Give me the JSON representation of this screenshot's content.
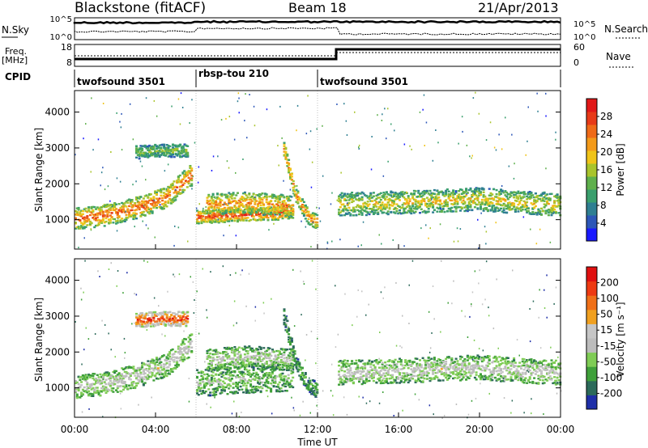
{
  "header": {
    "station": "Blackstone (fitACF)",
    "beam": "Beam 18",
    "date": "21/Apr/2013"
  },
  "left_labels": {
    "nsky": "N.Sky",
    "freq1": "Freq.",
    "freq2": "[MHz]",
    "cpid": "CPID"
  },
  "right_labels": {
    "nsearch": "N.Search",
    "nave": "Nave"
  },
  "noise_axis": {
    "left_ticks": [
      "10^5",
      "10^0"
    ],
    "right_ticks": [
      "10^5",
      "10^0"
    ]
  },
  "freq_axis": {
    "left_ticks": [
      "18",
      "8"
    ],
    "right_ticks": [
      "60",
      "0"
    ]
  },
  "cpid_segments": [
    {
      "label": "twofsound 3501",
      "start": 0,
      "end": 6
    },
    {
      "label": "rbsp-tou 210",
      "start": 6,
      "end": 12
    },
    {
      "label": "twofsound 3501",
      "start": 12,
      "end": 24
    }
  ],
  "chart_data": [
    {
      "type": "heatmap",
      "name": "power",
      "xlabel": "Time UT",
      "ylabel": "Slant Range [km]",
      "xlim": [
        0,
        24
      ],
      "ylim": [
        180,
        4600
      ],
      "yticks": [
        "1000",
        "2000",
        "3000",
        "4000"
      ],
      "colorbar": {
        "label": "Power [dB]",
        "ticks": [
          "28",
          "24",
          "20",
          "16",
          "12",
          "8",
          "4"
        ],
        "colors": [
          "#1a1aff",
          "#2d57b8",
          "#2f7f92",
          "#3a9f6d",
          "#5fb04c",
          "#a9c42c",
          "#f0c419",
          "#f39a1a",
          "#ef6a18",
          "#e73a18",
          "#e11818"
        ]
      },
      "bands": [
        {
          "t": [
            0,
            1.5,
            3,
            4.5,
            5.8
          ],
          "center": [
            1050,
            1150,
            1350,
            1650,
            2300
          ],
          "width": 300,
          "level": 0.85
        },
        {
          "t": [
            3,
            4,
            5.6
          ],
          "center": [
            2900,
            2950,
            2950
          ],
          "width": 180,
          "level": 0.45
        },
        {
          "t": [
            6,
            8,
            10,
            10.8
          ],
          "center": [
            1100,
            1150,
            1200,
            1250
          ],
          "width": 180,
          "level": 0.9
        },
        {
          "t": [
            6.5,
            8,
            9.5,
            10.8
          ],
          "center": [
            1450,
            1500,
            1450,
            1400
          ],
          "width": 300,
          "level": 0.75
        },
        {
          "t": [
            10.3,
            10.9,
            11.5,
            12
          ],
          "center": [
            3000,
            1700,
            1100,
            950
          ],
          "width": 200,
          "level": 0.8
        },
        {
          "t": [
            13,
            16,
            18,
            20,
            22,
            24
          ],
          "center": [
            1450,
            1500,
            1550,
            1600,
            1500,
            1450
          ],
          "width": 320,
          "level": 0.6
        }
      ]
    },
    {
      "type": "heatmap",
      "name": "velocity",
      "xlabel": "Time UT",
      "ylabel": "Slant Range [km]",
      "xlim": [
        0,
        24
      ],
      "ylim": [
        180,
        4600
      ],
      "yticks": [
        "1000",
        "2000",
        "3000",
        "4000"
      ],
      "xticks": [
        "00:00",
        "04:00",
        "08:00",
        "12:00",
        "16:00",
        "20:00",
        "00:00"
      ],
      "colorbar": {
        "label": "Velocity [m s⁻¹]",
        "ticks": [
          "200",
          "100",
          "50",
          "15",
          "-15",
          "-50",
          "-100",
          "-200"
        ],
        "colors": [
          "#1f2fa8",
          "#2c6a5a",
          "#3fa03a",
          "#7fcc55",
          "#bcbcbc",
          "#c6c6c6",
          "#f0a020",
          "#f07018",
          "#ee3a12",
          "#e01010"
        ]
      },
      "bands": [
        {
          "t": [
            0,
            1.5,
            3,
            4.5,
            5.8
          ],
          "center": [
            1050,
            1150,
            1350,
            1650,
            2300
          ],
          "width": 320,
          "level": 0.5
        },
        {
          "t": [
            3,
            4,
            5.6
          ],
          "center": [
            2900,
            2950,
            2950
          ],
          "width": 200,
          "level": 0.95
        },
        {
          "t": [
            6,
            8,
            10,
            10.8
          ],
          "center": [
            1150,
            1250,
            1300,
            1300
          ],
          "width": 380,
          "level": 0.35
        },
        {
          "t": [
            6.5,
            8.5,
            10.8
          ],
          "center": [
            1800,
            1900,
            1800
          ],
          "width": 300,
          "level": 0.45
        },
        {
          "t": [
            10.3,
            10.9,
            11.5,
            12
          ],
          "center": [
            3000,
            1700,
            1100,
            950
          ],
          "width": 220,
          "level": 0.25
        },
        {
          "t": [
            13,
            16,
            18,
            20,
            22,
            24
          ],
          "center": [
            1450,
            1500,
            1550,
            1600,
            1500,
            1450
          ],
          "width": 340,
          "level": 0.5
        }
      ]
    }
  ]
}
